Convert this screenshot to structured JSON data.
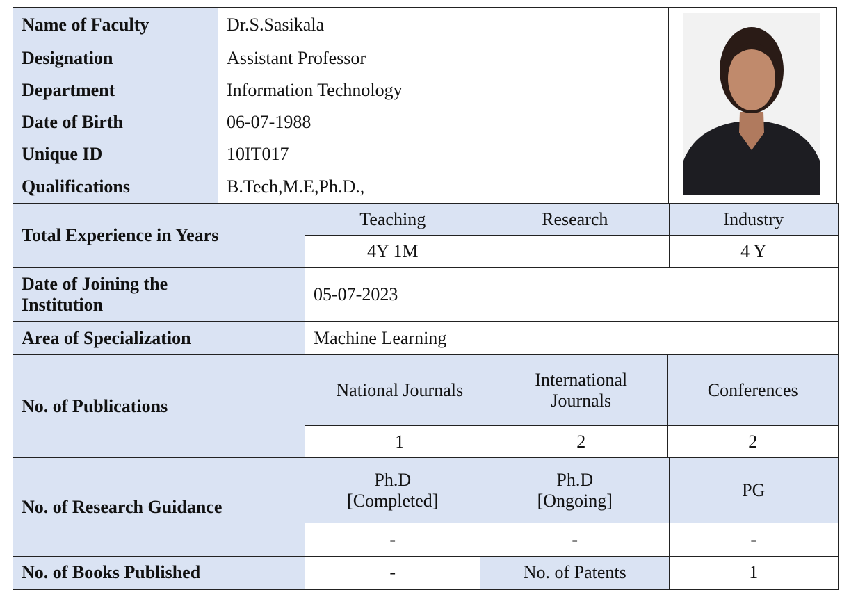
{
  "profile": [
    {
      "label": "Name of Faculty",
      "value": "Dr.S.Sasikala"
    },
    {
      "label": "Designation",
      "value": "Assistant Professor"
    },
    {
      "label": "Department",
      "value": "Information Technology"
    },
    {
      "label": "Date of Birth",
      "value": "06-07-1988"
    },
    {
      "label": "Unique ID",
      "value": "10IT017"
    },
    {
      "label": "Qualifications",
      "value": "B.Tech,M.E,Ph.D.,"
    }
  ],
  "experience": {
    "label": "Total Experience in Years",
    "headers": [
      "Teaching",
      "Research",
      "Industry"
    ],
    "values": [
      "4Y  1M",
      null,
      "4 Y"
    ]
  },
  "joining": {
    "label": "Date of Joining the\nInstitution",
    "value": "05-07-2023"
  },
  "specialization": {
    "label": "Area of Specialization",
    "value": "Machine Learning"
  },
  "publications": {
    "label": "No. of  Publications",
    "headers": [
      "National Journals",
      "International\nJournals",
      "Conferences"
    ],
    "values": [
      1,
      2,
      2
    ]
  },
  "guidance": {
    "label": "No. of Research Guidance",
    "headers": [
      "Ph.D\n[Completed]",
      "Ph.D\n[Ongoing]",
      "PG"
    ],
    "values": [
      "-",
      "-",
      "-"
    ]
  },
  "books": {
    "label": "No. of Books Published",
    "value": "-",
    "patents_label": "No. of Patents",
    "patents_value": 1
  }
}
